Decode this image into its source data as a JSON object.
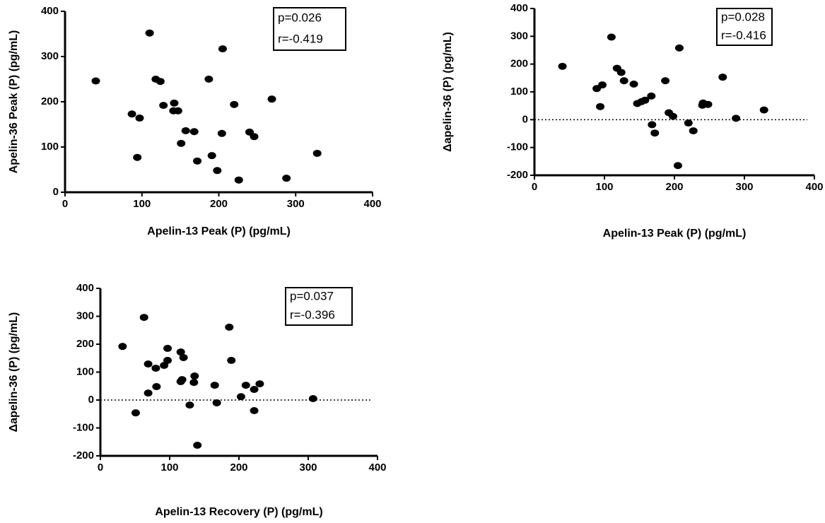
{
  "chart_data": [
    {
      "type": "scatter",
      "x_label": "Apelin-13 Peak (P) (pg/mL)",
      "y_label": "Apelin-36 Peak (P) (pg/mL)",
      "annotation": [
        "p=0.026",
        "r=-0.419"
      ],
      "color": "#000000",
      "zero_line": false,
      "xlim": [
        0,
        400
      ],
      "xticks": [
        0,
        100,
        200,
        300,
        400
      ],
      "ylim": [
        0,
        400
      ],
      "yticks": [
        0,
        100,
        200,
        300,
        400
      ],
      "x": [
        40,
        110,
        118,
        124,
        87,
        97,
        128,
        141,
        147,
        142,
        157,
        168,
        151,
        94,
        172,
        191,
        198,
        226,
        187,
        205,
        220,
        204,
        240,
        246,
        269,
        288,
        328
      ],
      "y": [
        246,
        352,
        250,
        245,
        173,
        164,
        192,
        180,
        180,
        197,
        136,
        134,
        108,
        77,
        69,
        81,
        48,
        27,
        250,
        317,
        194,
        130,
        133,
        123,
        206,
        31,
        86
      ]
    },
    {
      "type": "scatter",
      "x_label": "Apelin-13 Peak (P) (pg/mL)",
      "y_label": "Δapelin-36 (P) (pg/mL)",
      "annotation": [
        "p=0.028",
        "r=-0.416"
      ],
      "color": "#000000",
      "zero_line": true,
      "xlim": [
        0,
        400
      ],
      "xticks": [
        0,
        100,
        200,
        300,
        400
      ],
      "ylim": [
        -200,
        400
      ],
      "yticks": [
        -200,
        -100,
        0,
        100,
        200,
        300,
        400
      ],
      "x": [
        40,
        89,
        97,
        94,
        110,
        118,
        124,
        128,
        142,
        147,
        153,
        158,
        167,
        168,
        172,
        187,
        192,
        198,
        205,
        207,
        220,
        227,
        240,
        241,
        248,
        269,
        288,
        328
      ],
      "y": [
        192,
        112,
        125,
        47,
        297,
        185,
        170,
        140,
        128,
        58,
        65,
        70,
        85,
        -18,
        -48,
        140,
        25,
        12,
        -165,
        258,
        -12,
        -40,
        52,
        60,
        55,
        153,
        5,
        35
      ]
    },
    {
      "type": "scatter",
      "x_label": "Apelin-13 Recovery (P) (pg/mL)",
      "y_label": "Δapelin-36 (P) (pg/mL)",
      "annotation": [
        "p=0.037",
        "r=-0.396"
      ],
      "color": "#000000",
      "zero_line": true,
      "xlim": [
        0,
        400
      ],
      "xticks": [
        0,
        100,
        200,
        300,
        400
      ],
      "ylim": [
        -200,
        400
      ],
      "yticks": [
        -200,
        -100,
        0,
        100,
        200,
        300,
        400
      ],
      "x": [
        32,
        63,
        69,
        80,
        69,
        51,
        81,
        92,
        97,
        97,
        116,
        120,
        116,
        118,
        136,
        135,
        129,
        140,
        165,
        168,
        186,
        189,
        203,
        210,
        222,
        222,
        230,
        307
      ],
      "y": [
        192,
        296,
        129,
        114,
        25,
        -46,
        48,
        124,
        142,
        185,
        172,
        152,
        66,
        73,
        86,
        63,
        -18,
        -162,
        53,
        -10,
        261,
        142,
        12,
        53,
        38,
        -38,
        58,
        5
      ]
    }
  ]
}
